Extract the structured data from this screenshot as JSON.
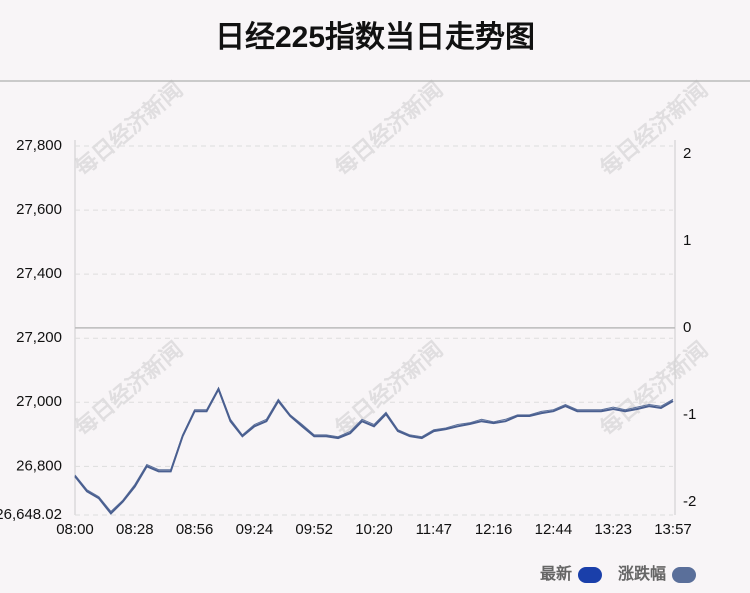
{
  "chart_data": {
    "type": "line",
    "title": "日经225指数当日走势图",
    "watermark": "每日经济新闻",
    "categories": [
      "08:00",
      null,
      null,
      null,
      null,
      "08:28",
      null,
      null,
      null,
      null,
      "08:56",
      null,
      null,
      null,
      null,
      "09:24",
      null,
      null,
      null,
      null,
      "09:52",
      null,
      null,
      null,
      null,
      "10:20",
      null,
      null,
      null,
      null,
      "11:47",
      null,
      null,
      null,
      null,
      "12:16",
      null,
      null,
      null,
      null,
      "12:44",
      null,
      null,
      null,
      null,
      "13:23",
      null,
      null,
      null,
      null,
      "13:57"
    ],
    "series": [
      {
        "name": "最新",
        "color": "#1a3faa",
        "line_color": "#4a5f90",
        "values": [
          26769,
          26722,
          26700,
          26653,
          26690,
          26737,
          26800,
          26784,
          26784,
          26894,
          26972,
          26972,
          27041,
          26941,
          26894,
          26925,
          26941,
          27004,
          26957,
          26925,
          26894,
          26894,
          26888,
          26903,
          26941,
          26925,
          26963,
          26910,
          26894,
          26888,
          26910,
          26916,
          26925,
          26932,
          26941,
          26935,
          26941,
          26957,
          26957,
          26966,
          26972,
          26988,
          26972,
          26972,
          26972,
          26979,
          26972,
          26979,
          26988,
          26982,
          27004
        ]
      },
      {
        "name": "涨跌幅",
        "color": "#5a6f9a",
        "axis": "y2",
        "values": [
          -1.69,
          -1.86,
          -1.94,
          -2.11,
          -1.98,
          -1.8,
          -1.57,
          -1.63,
          -1.63,
          -1.23,
          -0.94,
          -0.94,
          -0.69,
          -1.05,
          -1.23,
          -1.11,
          -1.05,
          -0.82,
          -1.0,
          -1.11,
          -1.23,
          -1.23,
          -1.25,
          -1.19,
          -1.05,
          -1.11,
          -0.97,
          -1.17,
          -1.23,
          -1.25,
          -1.17,
          -1.15,
          -1.11,
          -1.09,
          -1.05,
          -1.08,
          -1.05,
          -1.0,
          -1.0,
          -0.96,
          -0.94,
          -0.88,
          -0.94,
          -0.94,
          -0.94,
          -0.91,
          -0.94,
          -0.91,
          -0.88,
          -0.9,
          -0.82
        ]
      }
    ],
    "ylim": [
      26648.02,
      27800
    ],
    "yticks": [
      {
        "value": 26648.02,
        "label": "26,648.02"
      },
      {
        "value": 26800,
        "label": "26,800"
      },
      {
        "value": 27000,
        "label": "27,000"
      },
      {
        "value": 27200,
        "label": "27,200"
      },
      {
        "value": 27400,
        "label": "27,400"
      },
      {
        "value": 27600,
        "label": "27,600"
      },
      {
        "value": 27800,
        "label": "27,800"
      }
    ],
    "y2lim": [
      -2.15,
      2.09
    ],
    "y2ticks": [
      -2,
      -1,
      0,
      1,
      2
    ],
    "grid": true,
    "y2_zero_line": true,
    "legend": "bottom-right"
  }
}
